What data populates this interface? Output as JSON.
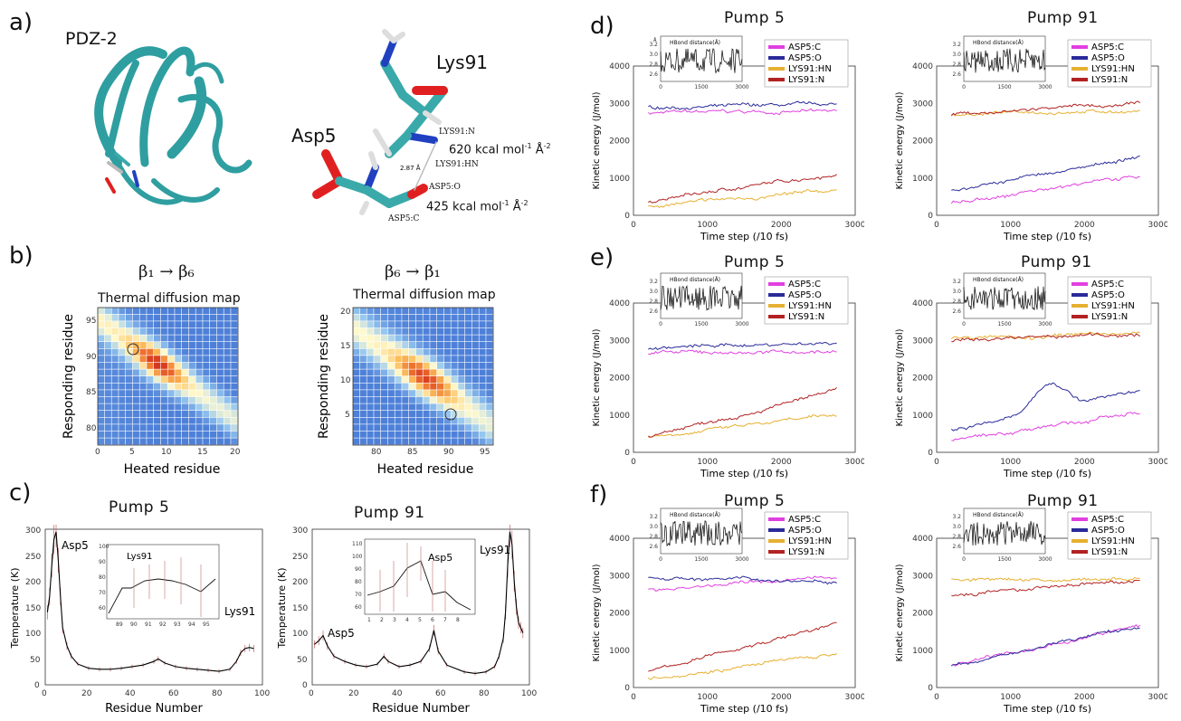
{
  "panel_labels": {
    "a": "a)",
    "b": "b)",
    "c": "c)",
    "d": "d)",
    "e": "e)",
    "f": "f)"
  },
  "panel_a": {
    "protein_label": "PDZ-2",
    "lys_label": "Lys91",
    "asp_label": "Asp5",
    "atom_labels": {
      "lys_n": "LYS91:N",
      "lys_hn": "LYS91:HN",
      "asp_o": "ASP5:O",
      "asp_c": "ASP5:C"
    },
    "distance": "2.87 Å",
    "k1": "620 kcal mol",
    "k1_exp": "-1",
    "k1_unit": "Å",
    "k1_unit_exp": "-2",
    "k2": "425 kcal mol",
    "k2_exp": "-1",
    "k2_unit": "Å",
    "k2_unit_exp": "-2"
  },
  "panel_b": {
    "left": {
      "header": "β₁ → β₆",
      "title": "Thermal diffusion map",
      "xlabel": "Heated residue",
      "ylabel": "Responding residue",
      "xticks": [
        "0",
        "5",
        "10",
        "15",
        "20"
      ],
      "yticks": [
        "80",
        "85",
        "90",
        "95"
      ]
    },
    "right": {
      "header": "β₆ → β₁",
      "title": "Thermal diffusion map",
      "xlabel": "Heated residue",
      "ylabel": "Responding residue",
      "xticks": [
        "80",
        "85",
        "90",
        "95"
      ],
      "yticks": [
        "5",
        "10",
        "15",
        "20"
      ]
    }
  },
  "panel_c": {
    "left": {
      "title": "Pump 5",
      "xlabel": "Residue Number",
      "ylabel": "Temperature (K)",
      "xticks": [
        "0",
        "20",
        "40",
        "60",
        "80",
        "100"
      ],
      "yticks": [
        "0",
        "50",
        "100",
        "150",
        "200",
        "250",
        "300"
      ],
      "annot1": "Asp5",
      "annot2": "Lys91",
      "inset_label": "Lys91",
      "inset_xticks": [
        "89",
        "90",
        "91",
        "92",
        "93",
        "94",
        "95"
      ],
      "inset_yticks": [
        "60",
        "70",
        "80",
        "90",
        "100"
      ]
    },
    "right": {
      "title": "Pump 91",
      "xlabel": "Residue Number",
      "ylabel": "Temperature (K)",
      "xticks": [
        "0",
        "20",
        "40",
        "60",
        "80",
        "100"
      ],
      "yticks": [
        "0",
        "50",
        "100",
        "150",
        "200",
        "250",
        "300"
      ],
      "annot1": "Lys91",
      "annot2": "Asp5",
      "inset_label": "Asp5",
      "inset_xticks": [
        "1",
        "2",
        "3",
        "4",
        "5",
        "6",
        "7",
        "8"
      ],
      "inset_yticks": [
        "60",
        "70",
        "80",
        "90",
        "100",
        "110"
      ]
    }
  },
  "kinetic_panels": {
    "titles": {
      "d_left": "Pump 5",
      "d_right": "Pump 91",
      "e_left": "Pump 5",
      "e_right": "Pump 91",
      "f_left": "Pump 5",
      "f_right": "Pump 91"
    },
    "xlabel": "Time step (/10 fs)",
    "ylabel": "Kinetic energy (J/mol)",
    "xticks": [
      "0",
      "1000",
      "2000",
      "3000"
    ],
    "yticks": [
      "0",
      "1000",
      "2000",
      "3000",
      "4000"
    ],
    "inset_title": "HBond distance(Å)",
    "inset_unit": "Å",
    "inset_yticks": [
      "2.6",
      "2.8",
      "3.0",
      "3.2"
    ],
    "inset_xticks": [
      "0",
      "1500",
      "3000"
    ],
    "legend": [
      "ASP5:C",
      "ASP5:O",
      "LYS91:HN",
      "LYS91:N"
    ]
  },
  "colors": {
    "asp5c": "#e040e0",
    "asp5o": "#2a2a9a",
    "lys91hn": "#e6b030",
    "lys91n": "#b22222",
    "teal": "#3aa9aa",
    "black": "#000000"
  },
  "chart_data": [
    {
      "type": "heatmap",
      "title": "Thermal diffusion map",
      "header": "β1→β6",
      "xlabel": "Heated residue",
      "ylabel": "Responding residue",
      "xlim": [
        0,
        20
      ],
      "ylim": [
        77,
        96
      ]
    },
    {
      "type": "heatmap",
      "title": "Thermal diffusion map",
      "header": "β6→β1",
      "xlabel": "Heated residue",
      "ylabel": "Responding residue",
      "xlim": [
        77,
        96
      ],
      "ylim": [
        0,
        20
      ]
    },
    {
      "type": "line",
      "title": "Pump 5",
      "xlabel": "Residue Number",
      "ylabel": "Temperature (K)",
      "xlim": [
        0,
        100
      ],
      "ylim": [
        0,
        300
      ],
      "x": [
        1,
        2,
        3,
        4,
        5,
        6,
        7,
        8,
        10,
        12,
        15,
        20,
        25,
        30,
        35,
        40,
        45,
        50,
        52,
        55,
        60,
        65,
        70,
        75,
        80,
        85,
        88,
        90,
        92,
        94,
        96
      ],
      "y": [
        140,
        170,
        230,
        280,
        295,
        240,
        170,
        110,
        75,
        55,
        40,
        32,
        30,
        30,
        32,
        35,
        38,
        45,
        50,
        42,
        35,
        32,
        30,
        28,
        26,
        30,
        45,
        62,
        70,
        72,
        70
      ]
    },
    {
      "type": "line",
      "title": "Pump 91",
      "xlabel": "Residue Number",
      "ylabel": "Temperature (K)",
      "xlim": [
        0,
        100
      ],
      "ylim": [
        0,
        300
      ],
      "x": [
        1,
        3,
        5,
        7,
        10,
        15,
        20,
        25,
        30,
        33,
        35,
        40,
        45,
        50,
        54,
        56,
        58,
        62,
        70,
        75,
        80,
        84,
        86,
        88,
        89,
        90,
        91,
        92,
        93,
        94,
        95,
        96,
        97
      ],
      "y": [
        78,
        85,
        95,
        75,
        55,
        45,
        38,
        35,
        40,
        55,
        45,
        35,
        38,
        45,
        70,
        105,
        65,
        38,
        25,
        22,
        25,
        35,
        55,
        90,
        140,
        230,
        295,
        270,
        200,
        150,
        120,
        110,
        100
      ]
    }
  ]
}
